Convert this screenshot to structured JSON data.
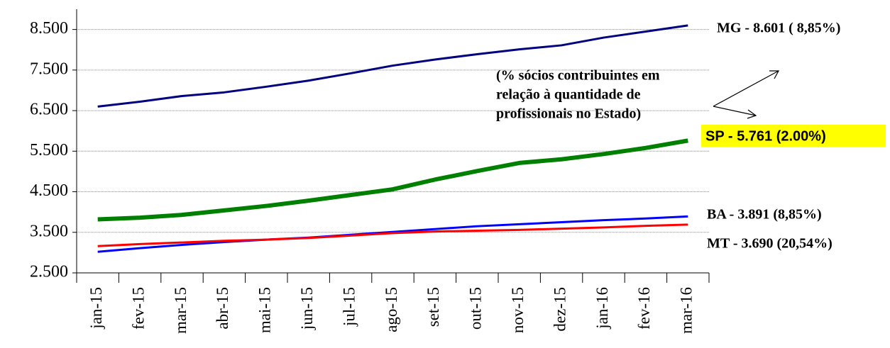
{
  "chart_data": {
    "type": "line",
    "categories": [
      "jan-15",
      "fev-15",
      "mar-15",
      "abr-15",
      "mai-15",
      "jun-15",
      "jul-15",
      "ago-15",
      "set-15",
      "out-15",
      "nov-15",
      "dez-15",
      "jan-16",
      "fev-16",
      "mar-16"
    ],
    "series": [
      {
        "color": "#000080",
        "label": "MG - 8.601 ( 8,85%)",
        "values": [
          6600,
          6720,
          6860,
          6950,
          7090,
          7240,
          7420,
          7610,
          7760,
          7890,
          8010,
          8110,
          8300,
          8450,
          8601
        ]
      },
      {
        "color": "#008000",
        "label": "SP - 5.761 (2.00%)",
        "values": [
          3820,
          3860,
          3930,
          4040,
          4150,
          4280,
          4420,
          4560,
          4800,
          5010,
          5210,
          5300,
          5430,
          5580,
          5761
        ]
      },
      {
        "color": "#0000ff",
        "label": "BA - 3.891 (8,85%)",
        "values": [
          3020,
          3110,
          3190,
          3260,
          3320,
          3370,
          3440,
          3510,
          3580,
          3650,
          3700,
          3750,
          3800,
          3840,
          3891
        ]
      },
      {
        "color": "#ff0000",
        "label": "MT - 3.690 (20,54%)",
        "values": [
          3160,
          3210,
          3250,
          3290,
          3320,
          3360,
          3420,
          3480,
          3520,
          3540,
          3560,
          3590,
          3620,
          3660,
          3690
        ]
      }
    ],
    "note": [
      "(% sócios contribuintes em",
      "relação à quantidade de",
      "profissionais no Estado)"
    ],
    "ylim": [
      2500,
      9000
    ],
    "yticks": [
      {
        "value": 2500,
        "label": "2.500"
      },
      {
        "value": 3500,
        "label": "3.500"
      },
      {
        "value": 4500,
        "label": "4.500"
      },
      {
        "value": 5500,
        "label": "5.500"
      },
      {
        "value": 6500,
        "label": "6.500"
      },
      {
        "value": 7500,
        "label": "7.500"
      },
      {
        "value": 8500,
        "label": "8.500"
      }
    ],
    "grid": true
  }
}
